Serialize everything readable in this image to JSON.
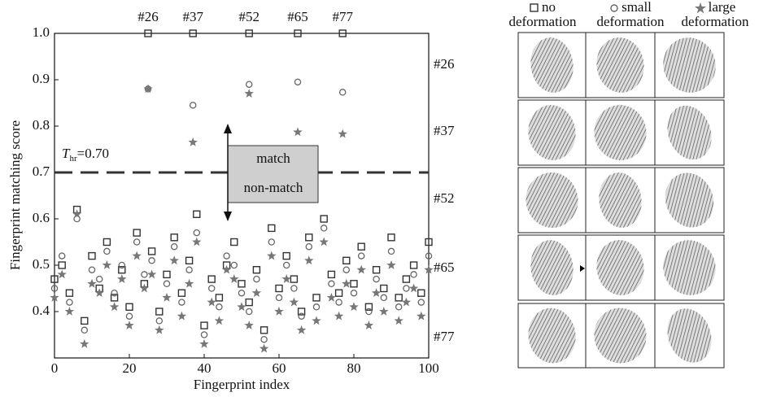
{
  "chart_data": {
    "type": "scatter",
    "x_label": "Fingerprint index",
    "y_label": "Fingerprint matching score",
    "xlim": [
      0,
      100
    ],
    "xticks": [
      0,
      20,
      40,
      60,
      80,
      100
    ],
    "ylim": [
      0.3,
      1.0
    ],
    "yticks": [
      0.4,
      0.5,
      0.6,
      0.7,
      0.8,
      0.9,
      {
        "value": 1,
        "label": "1.0"
      }
    ],
    "threshold": {
      "value": 0.7,
      "symbol": "T",
      "subscript": "hr",
      "label": "=0.70"
    },
    "region_labels": [
      "match",
      "non-match"
    ],
    "top_labels": [
      {
        "x": 25,
        "label": "#26"
      },
      {
        "x": 37,
        "label": "#37"
      },
      {
        "x": 52,
        "label": "#52"
      },
      {
        "x": 65,
        "label": "#65"
      },
      {
        "x": 77,
        "label": "#77"
      }
    ],
    "row_labels": [
      "#26",
      "#37",
      "#52",
      "#65",
      "#77"
    ],
    "series": [
      {
        "name": "no deformation",
        "marker": "square",
        "color": "#333333",
        "x": [
          0,
          2,
          4,
          6,
          8,
          10,
          12,
          14,
          16,
          18,
          20,
          22,
          24,
          26,
          28,
          30,
          32,
          34,
          36,
          38,
          40,
          42,
          44,
          46,
          48,
          50,
          52,
          54,
          56,
          58,
          60,
          62,
          64,
          66,
          68,
          70,
          72,
          74,
          76,
          78,
          80,
          82,
          84,
          86,
          88,
          90,
          92,
          94,
          96,
          98,
          100,
          25,
          37,
          52,
          65,
          77
        ],
        "values": [
          0.47,
          0.5,
          0.44,
          0.62,
          0.38,
          0.52,
          0.45,
          0.55,
          0.43,
          0.49,
          0.41,
          0.57,
          0.46,
          0.53,
          0.4,
          0.48,
          0.56,
          0.44,
          0.51,
          0.61,
          0.37,
          0.47,
          0.43,
          0.5,
          0.55,
          0.46,
          0.42,
          0.49,
          0.36,
          0.58,
          0.45,
          0.52,
          0.47,
          0.4,
          0.56,
          0.43,
          0.6,
          0.48,
          0.44,
          0.51,
          0.46,
          0.54,
          0.41,
          0.49,
          0.45,
          0.56,
          0.43,
          0.47,
          0.5,
          0.44,
          0.55,
          1.0,
          1.0,
          1.0,
          1.0,
          1.0
        ]
      },
      {
        "name": "small deformation",
        "marker": "circle",
        "color": "#666666",
        "x": [
          0,
          2,
          4,
          6,
          8,
          10,
          12,
          14,
          16,
          18,
          20,
          22,
          24,
          26,
          28,
          30,
          32,
          34,
          36,
          38,
          40,
          42,
          44,
          46,
          48,
          50,
          52,
          54,
          56,
          58,
          60,
          62,
          64,
          66,
          68,
          70,
          72,
          74,
          76,
          78,
          80,
          82,
          84,
          86,
          88,
          90,
          92,
          94,
          96,
          98,
          100,
          25,
          37,
          52,
          65,
          77
        ],
        "values": [
          0.45,
          0.52,
          0.42,
          0.6,
          0.36,
          0.49,
          0.47,
          0.53,
          0.44,
          0.5,
          0.39,
          0.55,
          0.48,
          0.51,
          0.38,
          0.46,
          0.54,
          0.42,
          0.49,
          0.57,
          0.35,
          0.45,
          0.41,
          0.52,
          0.5,
          0.44,
          0.4,
          0.47,
          0.34,
          0.55,
          0.43,
          0.5,
          0.45,
          0.39,
          0.54,
          0.41,
          0.58,
          0.46,
          0.42,
          0.49,
          0.44,
          0.52,
          0.4,
          0.47,
          0.43,
          0.53,
          0.41,
          0.45,
          0.48,
          0.42,
          0.52,
          0.88,
          0.845,
          0.89,
          0.895,
          0.873
        ]
      },
      {
        "name": "large deformation",
        "marker": "star",
        "color": "#777777",
        "x": [
          0,
          2,
          4,
          6,
          8,
          10,
          12,
          14,
          16,
          18,
          20,
          22,
          24,
          26,
          28,
          30,
          32,
          34,
          36,
          38,
          40,
          42,
          44,
          46,
          48,
          50,
          52,
          54,
          56,
          58,
          60,
          62,
          64,
          66,
          68,
          70,
          72,
          74,
          76,
          78,
          80,
          82,
          84,
          86,
          88,
          90,
          92,
          94,
          96,
          98,
          100,
          25,
          37,
          52,
          65,
          77
        ],
        "values": [
          0.43,
          0.48,
          0.4,
          0.61,
          0.33,
          0.46,
          0.44,
          0.5,
          0.41,
          0.47,
          0.37,
          0.52,
          0.45,
          0.48,
          0.36,
          0.43,
          0.51,
          0.39,
          0.46,
          0.55,
          0.33,
          0.42,
          0.38,
          0.49,
          0.47,
          0.41,
          0.37,
          0.44,
          0.32,
          0.52,
          0.4,
          0.47,
          0.42,
          0.36,
          0.51,
          0.38,
          0.55,
          0.43,
          0.39,
          0.46,
          0.41,
          0.49,
          0.37,
          0.44,
          0.4,
          0.5,
          0.38,
          0.42,
          0.45,
          0.39,
          0.49,
          0.88,
          0.765,
          0.87,
          0.787,
          0.783
        ]
      }
    ]
  }
}
